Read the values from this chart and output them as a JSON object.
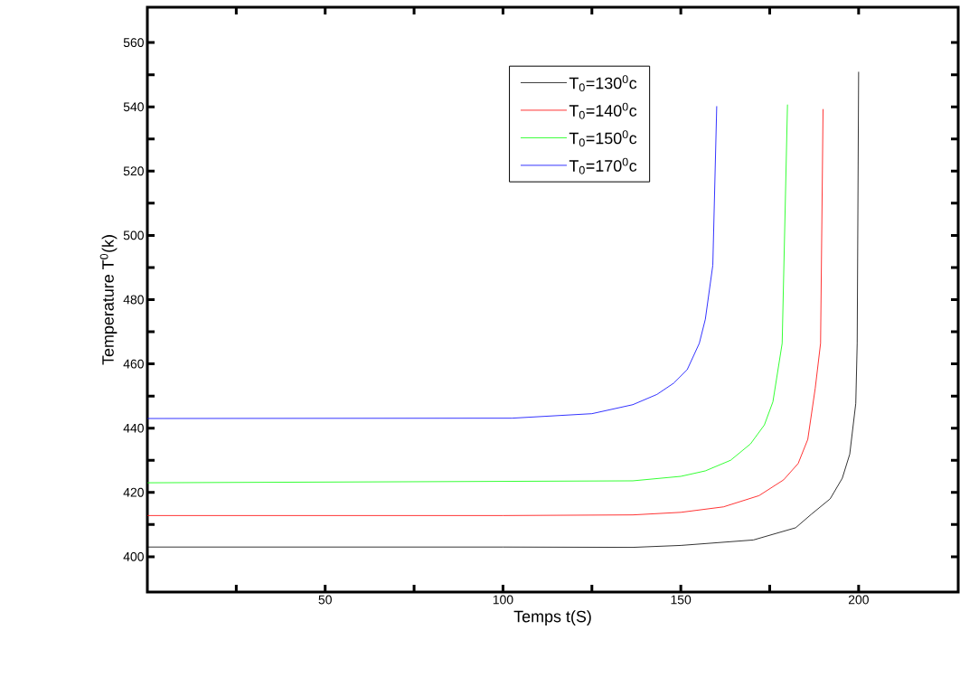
{
  "chart_data": {
    "type": "line",
    "xlabel": "Temps t(S)",
    "ylabel": "Temperature T$^{0}$(k)",
    "xlim": [
      0,
      228
    ],
    "ylim": [
      389,
      571
    ],
    "xticks": [
      {
        "value": 25,
        "label": null
      },
      50,
      {
        "value": 75,
        "label": null
      },
      100,
      {
        "value": 125,
        "label": null
      },
      150,
      {
        "value": 175,
        "label": null
      },
      200
    ],
    "yticks": [
      400,
      {
        "value": 410,
        "label": null
      },
      420,
      {
        "value": 430,
        "label": null
      },
      440,
      {
        "value": 450,
        "label": null
      },
      460,
      {
        "value": 470,
        "label": null
      },
      480,
      {
        "value": 490,
        "label": null
      },
      500,
      {
        "value": 510,
        "label": null
      },
      520,
      {
        "value": 530,
        "label": null
      },
      540,
      {
        "value": 550,
        "label": null
      },
      560
    ],
    "legend": "top right",
    "grid": false,
    "marker": "none",
    "line_style": "solid",
    "series": [
      {
        "name": "T$_{0}$=130$^{0}$c",
        "color": "#000000",
        "x": [
          0,
          100,
          136.5,
          150,
          170.4,
          182.3,
          186.7,
          192,
          195.4,
          197.5,
          199.2,
          199.6,
          200
        ],
        "values": [
          403,
          403,
          402.9,
          403.5,
          405.2,
          409,
          413.2,
          418,
          424.4,
          431.9,
          447.7,
          466.4,
          550.9
        ]
      },
      {
        "name": "T$_{0}$=140$^{0}$c",
        "color": "#ff0000",
        "x": [
          0,
          100,
          136.5,
          150,
          162,
          172,
          178.9,
          183,
          185.7,
          187.8,
          189.3,
          190
        ],
        "values": [
          412.8,
          412.8,
          413,
          413.8,
          415.5,
          419,
          423.9,
          429,
          436.5,
          452.4,
          466.4,
          539.3
        ]
      },
      {
        "name": "T$_{0}$=150$^{0}$c",
        "color": "#00ff00",
        "x": [
          0,
          136.5,
          150,
          156.9,
          164,
          169.6,
          173.5,
          175.9,
          178.5,
          180
        ],
        "values": [
          423,
          423.6,
          425,
          426.7,
          430,
          435.1,
          441,
          448.2,
          466.4,
          540.7
        ]
      },
      {
        "name": "T$_{0}$=170$^{0}$c",
        "color": "#0000ff",
        "x": [
          0,
          102.5,
          125,
          136.5,
          143.3,
          148,
          151.8,
          155.2,
          156.9,
          159,
          160.1
        ],
        "values": [
          443,
          443.1,
          444.5,
          447.3,
          450.5,
          454,
          458.2,
          466.4,
          473.9,
          490.7,
          540.2
        ]
      }
    ]
  }
}
